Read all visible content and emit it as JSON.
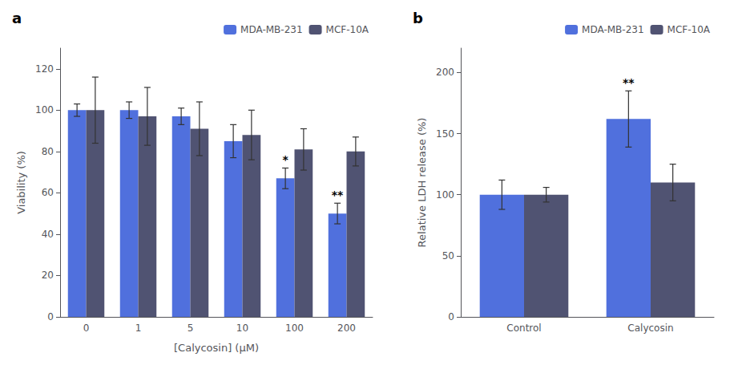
{
  "chart_data": [
    {
      "type": "bar",
      "title": "a",
      "xlabel": "[Calycosin] (μM)",
      "ylabel": "Viability (%)",
      "categories": [
        "0",
        "1",
        "5",
        "10",
        "100",
        "200"
      ],
      "series": [
        {
          "name": "MDA-MB-231",
          "values": [
            100,
            100,
            97,
            85,
            67,
            50
          ],
          "errors": [
            3,
            4,
            4,
            8,
            5,
            5
          ]
        },
        {
          "name": "MCF-10A",
          "values": [
            100,
            97,
            91,
            88,
            81,
            80
          ],
          "errors": [
            16,
            14,
            13,
            12,
            10,
            7
          ]
        }
      ],
      "annotations": [
        {
          "category": "100",
          "series": "MDA-MB-231",
          "text": "*"
        },
        {
          "category": "200",
          "series": "MDA-MB-231",
          "text": "**"
        }
      ],
      "ylim": [
        0,
        130
      ],
      "yticks": [
        0,
        20,
        40,
        60,
        80,
        100,
        120
      ],
      "grid": false,
      "legend": "upper right"
    },
    {
      "type": "bar",
      "title": "b",
      "ylabel": "Relative LDH release (%)",
      "categories": [
        "Control",
        "Calycosin"
      ],
      "series": [
        {
          "name": "MDA-MB-231",
          "values": [
            100,
            162
          ],
          "errors": [
            12,
            23
          ]
        },
        {
          "name": "MCF-10A",
          "values": [
            100,
            110
          ],
          "errors": [
            6,
            15
          ]
        }
      ],
      "annotations": [
        {
          "category": "Calycosin",
          "series": "MDA-MB-231",
          "text": "**"
        }
      ],
      "ylim": [
        0,
        220
      ],
      "yticks": [
        0,
        50,
        100,
        150,
        200
      ],
      "grid": false,
      "legend": "upper right"
    }
  ]
}
